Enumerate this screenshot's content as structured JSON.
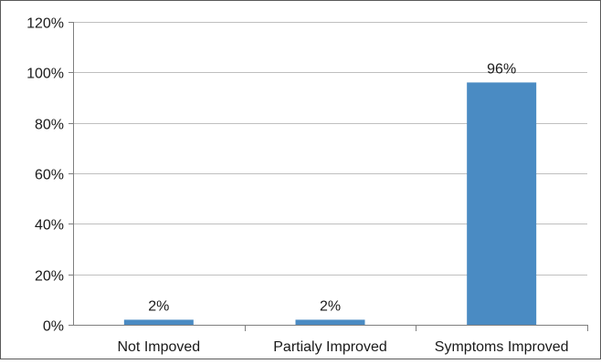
{
  "chart_data": {
    "type": "bar",
    "categories": [
      "Not Impoved",
      "Partialy Improved",
      "Symptoms Improved"
    ],
    "values": [
      2,
      2,
      96
    ],
    "data_labels": [
      "2%",
      "2%",
      "96%"
    ],
    "y_ticks": [
      0,
      20,
      40,
      60,
      80,
      100,
      120
    ],
    "y_tick_labels": [
      "0%",
      "20%",
      "40%",
      "60%",
      "80%",
      "100%",
      "120%"
    ],
    "ylim": [
      0,
      120
    ],
    "unit": "%",
    "grid": true,
    "legend": "none",
    "title": "",
    "xlabel": "",
    "ylabel": ""
  },
  "colors": {
    "bar": "#4a8bc3",
    "grid": "#bfbfbf",
    "axis": "#7f7f7f",
    "frame": "#5a5a5a",
    "text": "#1a1a1a"
  }
}
